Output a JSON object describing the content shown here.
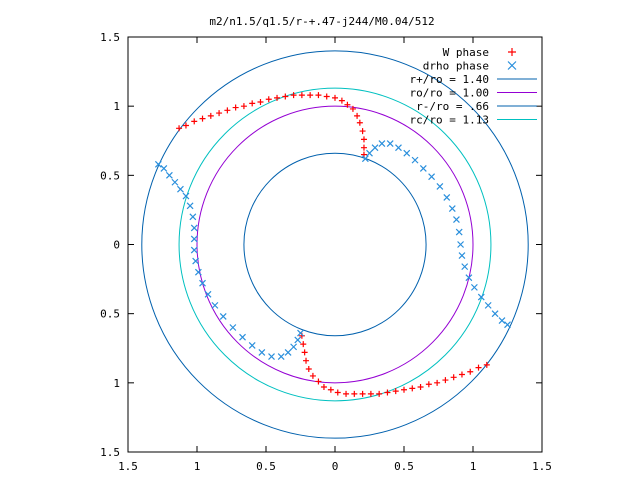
{
  "chart_data": {
    "type": "scatter",
    "title": "m2/n1.5/q1.5/r-+.47-j244/M0.04/512",
    "xlabel": "",
    "ylabel": "",
    "xlim": [
      -1.5,
      1.5
    ],
    "ylim": [
      -1.5,
      1.5
    ],
    "x_ticks": [
      {
        "value": -1.5,
        "label": "1.5"
      },
      {
        "value": -1,
        "label": "1"
      },
      {
        "value": -0.5,
        "label": "0.5"
      },
      {
        "value": 0,
        "label": "0"
      },
      {
        "value": 0.5,
        "label": "0.5"
      },
      {
        "value": 1,
        "label": "1"
      },
      {
        "value": 1.5,
        "label": "1.5"
      }
    ],
    "y_ticks": [
      {
        "value": 1.5,
        "label": "1.5"
      },
      {
        "value": 1,
        "label": "1"
      },
      {
        "value": 0.5,
        "label": "0.5"
      },
      {
        "value": 0,
        "label": "0"
      },
      {
        "value": -0.5,
        "label": "0.5"
      },
      {
        "value": -1,
        "label": "1"
      },
      {
        "value": -1.5,
        "label": "1.5"
      }
    ],
    "legend_position": "top-right",
    "grid": false,
    "circles": [
      {
        "name": "r+/ro = 1.40",
        "radius": 1.4,
        "color": "#0060ad"
      },
      {
        "name": "ro/ro = 1.00",
        "radius": 1.0,
        "color": "#9400d3"
      },
      {
        "name": "r-/ro = .66",
        "radius": 0.66,
        "color": "#0060ad"
      },
      {
        "name": "rc/ro = 1.13",
        "radius": 1.13,
        "color": "#00c0c0"
      }
    ],
    "series": [
      {
        "name": "W phase",
        "marker": "+",
        "color": "#ff0000",
        "points": [
          [
            -1.13,
            0.84
          ],
          [
            -1.08,
            0.86
          ],
          [
            -1.02,
            0.89
          ],
          [
            -0.96,
            0.91
          ],
          [
            -0.9,
            0.93
          ],
          [
            -0.84,
            0.95
          ],
          [
            -0.78,
            0.97
          ],
          [
            -0.72,
            0.99
          ],
          [
            -0.66,
            1.0
          ],
          [
            -0.6,
            1.02
          ],
          [
            -0.54,
            1.03
          ],
          [
            -0.48,
            1.05
          ],
          [
            -0.42,
            1.06
          ],
          [
            -0.36,
            1.07
          ],
          [
            -0.3,
            1.08
          ],
          [
            -0.24,
            1.08
          ],
          [
            -0.18,
            1.08
          ],
          [
            -0.12,
            1.08
          ],
          [
            -0.06,
            1.07
          ],
          [
            0.0,
            1.06
          ],
          [
            0.05,
            1.04
          ],
          [
            0.09,
            1.01
          ],
          [
            0.13,
            0.98
          ],
          [
            0.16,
            0.93
          ],
          [
            0.18,
            0.88
          ],
          [
            0.2,
            0.82
          ],
          [
            0.21,
            0.76
          ],
          [
            0.21,
            0.7
          ],
          [
            0.21,
            0.65
          ],
          [
            1.1,
            -0.87
          ],
          [
            1.04,
            -0.89
          ],
          [
            0.98,
            -0.92
          ],
          [
            0.92,
            -0.94
          ],
          [
            0.86,
            -0.96
          ],
          [
            0.8,
            -0.98
          ],
          [
            0.74,
            -1.0
          ],
          [
            0.68,
            -1.01
          ],
          [
            0.62,
            -1.03
          ],
          [
            0.56,
            -1.04
          ],
          [
            0.5,
            -1.05
          ],
          [
            0.44,
            -1.06
          ],
          [
            0.38,
            -1.07
          ],
          [
            0.32,
            -1.08
          ],
          [
            0.26,
            -1.08
          ],
          [
            0.2,
            -1.08
          ],
          [
            0.14,
            -1.08
          ],
          [
            0.08,
            -1.08
          ],
          [
            0.02,
            -1.07
          ],
          [
            -0.03,
            -1.05
          ],
          [
            -0.08,
            -1.03
          ],
          [
            -0.12,
            -0.99
          ],
          [
            -0.16,
            -0.95
          ],
          [
            -0.19,
            -0.9
          ],
          [
            -0.21,
            -0.84
          ],
          [
            -0.22,
            -0.78
          ],
          [
            -0.23,
            -0.72
          ],
          [
            -0.24,
            -0.66
          ]
        ]
      },
      {
        "name": "drho phase",
        "marker": "x",
        "color": "#2a8fdc",
        "points": [
          [
            0.22,
            0.62
          ],
          [
            0.25,
            0.66
          ],
          [
            0.29,
            0.7
          ],
          [
            0.34,
            0.73
          ],
          [
            0.4,
            0.73
          ],
          [
            0.46,
            0.7
          ],
          [
            0.52,
            0.66
          ],
          [
            0.58,
            0.61
          ],
          [
            0.64,
            0.55
          ],
          [
            0.7,
            0.49
          ],
          [
            0.76,
            0.42
          ],
          [
            0.81,
            0.34
          ],
          [
            0.85,
            0.26
          ],
          [
            0.88,
            0.18
          ],
          [
            0.9,
            0.09
          ],
          [
            0.91,
            0.0
          ],
          [
            0.92,
            -0.08
          ],
          [
            0.94,
            -0.16
          ],
          [
            0.97,
            -0.24
          ],
          [
            1.01,
            -0.31
          ],
          [
            1.06,
            -0.38
          ],
          [
            1.11,
            -0.44
          ],
          [
            1.16,
            -0.5
          ],
          [
            1.21,
            -0.55
          ],
          [
            1.25,
            -0.58
          ],
          [
            -1.28,
            0.58
          ],
          [
            -1.24,
            0.55
          ],
          [
            -1.2,
            0.5
          ],
          [
            -1.16,
            0.45
          ],
          [
            -1.12,
            0.4
          ],
          [
            -1.08,
            0.35
          ],
          [
            -1.05,
            0.28
          ],
          [
            -1.03,
            0.2
          ],
          [
            -1.02,
            0.12
          ],
          [
            -1.02,
            0.04
          ],
          [
            -1.02,
            -0.04
          ],
          [
            -1.01,
            -0.12
          ],
          [
            -0.99,
            -0.2
          ],
          [
            -0.96,
            -0.28
          ],
          [
            -0.92,
            -0.36
          ],
          [
            -0.87,
            -0.44
          ],
          [
            -0.81,
            -0.52
          ],
          [
            -0.74,
            -0.6
          ],
          [
            -0.67,
            -0.67
          ],
          [
            -0.6,
            -0.73
          ],
          [
            -0.53,
            -0.78
          ],
          [
            -0.46,
            -0.81
          ],
          [
            -0.39,
            -0.81
          ],
          [
            -0.34,
            -0.78
          ],
          [
            -0.3,
            -0.74
          ],
          [
            -0.27,
            -0.69
          ],
          [
            -0.25,
            -0.64
          ]
        ]
      }
    ]
  }
}
